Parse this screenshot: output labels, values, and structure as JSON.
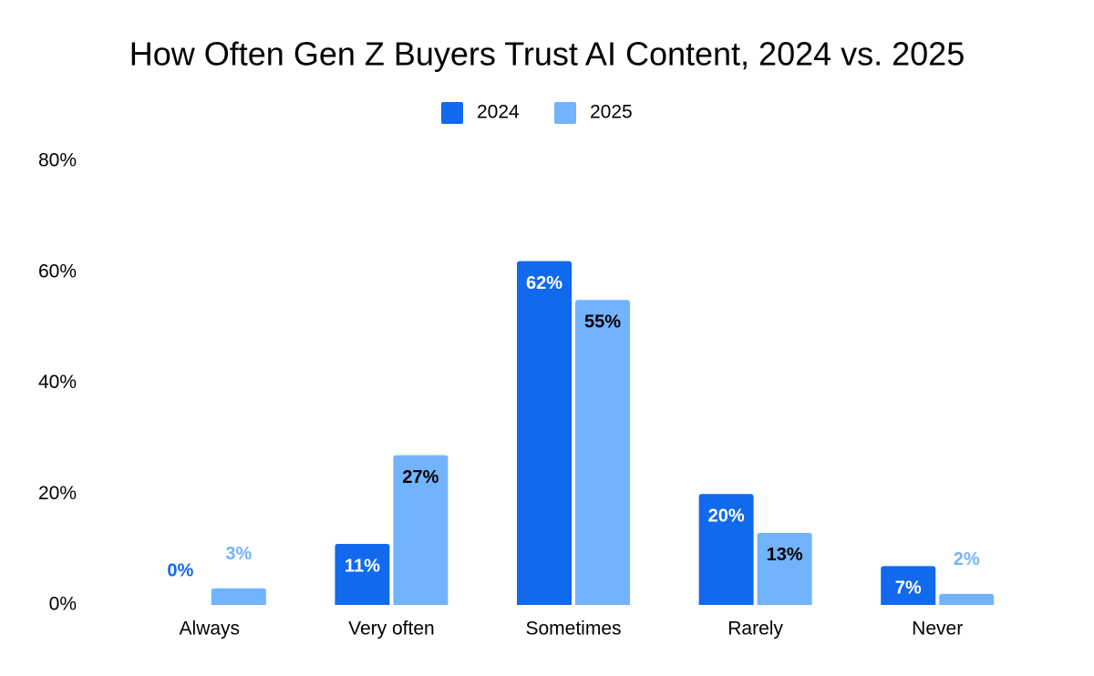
{
  "chart_data": {
    "type": "bar",
    "title": "How Often Gen Z Buyers Trust AI Content, 2024 vs. 2025",
    "categories": [
      "Always",
      "Very often",
      "Sometimes",
      "Rarely",
      "Never"
    ],
    "series": [
      {
        "name": "2024",
        "color": "#1169ee",
        "values": [
          0,
          11,
          62,
          20,
          7
        ],
        "value_labels": [
          "0%",
          "11%",
          "62%",
          "20%",
          "7%"
        ]
      },
      {
        "name": "2025",
        "color": "#72b3fd",
        "values": [
          3,
          27,
          55,
          13,
          2
        ],
        "value_labels": [
          "3%",
          "27%",
          "55%",
          "13%",
          "2%"
        ]
      }
    ],
    "ylim": [
      0,
      80
    ],
    "yticks": [
      {
        "value": 0,
        "label": "0%"
      },
      {
        "value": 20,
        "label": "20%"
      },
      {
        "value": 40,
        "label": "40%"
      },
      {
        "value": 60,
        "label": "60%"
      },
      {
        "value": 80,
        "label": "80%"
      }
    ],
    "grid": false,
    "legend": "top"
  }
}
